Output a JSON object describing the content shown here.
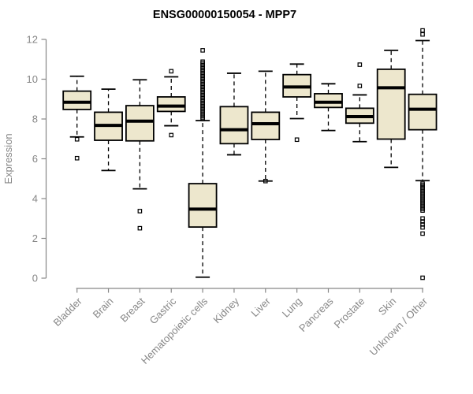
{
  "title": "ENSG00000150054 - MPP7",
  "colors": {
    "box_fill": "#EDE7CD",
    "box_stroke": "#000000",
    "axis_gray": "#878787",
    "background": "#ffffff"
  },
  "chart_data": {
    "type": "boxplot",
    "title": "ENSG00000150054 - MPP7",
    "xlabel": "",
    "ylabel": "Expression",
    "ylim": [
      0,
      12
    ],
    "y_ticks": [
      0,
      2,
      4,
      6,
      8,
      10,
      12
    ],
    "grid": false,
    "legend": "none",
    "x_label_rotation_deg": 45,
    "categories": [
      "Bladder",
      "Brain",
      "Breast",
      "Gastric",
      "Hematopoietic cells",
      "Kidney",
      "Liver",
      "Lung",
      "Pancreas",
      "Prostate",
      "Skin",
      "Unknown / Other"
    ],
    "series": [
      {
        "name": "Bladder",
        "whisker_low": 7.1,
        "q1": 8.48,
        "median": 8.84,
        "q3": 9.4,
        "whisker_high": 10.15,
        "outliers": [
          6.98,
          6.03
        ]
      },
      {
        "name": "Brain",
        "whisker_low": 5.41,
        "q1": 6.93,
        "median": 7.68,
        "q3": 8.34,
        "whisker_high": 9.5,
        "outliers": []
      },
      {
        "name": "Breast",
        "whisker_low": 4.49,
        "q1": 6.9,
        "median": 7.89,
        "q3": 8.67,
        "whisker_high": 9.97,
        "outliers": [
          3.37,
          2.51
        ]
      },
      {
        "name": "Gastric",
        "whisker_low": 7.66,
        "q1": 8.38,
        "median": 8.65,
        "q3": 9.11,
        "whisker_high": 10.12,
        "outliers": [
          10.4,
          7.19
        ]
      },
      {
        "name": "Hematopoietic cells",
        "whisker_low": 0.05,
        "q1": 2.57,
        "median": 3.47,
        "q3": 4.75,
        "whisker_high": 7.92,
        "outliers": [
          11.45,
          10.88,
          10.8,
          10.72,
          10.64,
          10.56,
          10.48,
          10.4,
          10.32,
          10.24,
          10.16,
          10.08,
          10.0,
          9.92,
          9.84,
          9.76,
          9.68,
          9.6,
          9.52,
          9.44,
          9.36,
          9.28,
          9.2,
          9.12,
          9.04,
          8.96,
          8.88,
          8.8,
          8.72,
          8.64,
          8.56,
          8.48,
          8.4,
          8.32,
          8.24,
          8.16,
          8.08,
          8.0
        ]
      },
      {
        "name": "Kidney",
        "whisker_low": 6.2,
        "q1": 6.76,
        "median": 7.46,
        "q3": 8.62,
        "whisker_high": 10.3,
        "outliers": []
      },
      {
        "name": "Liver",
        "whisker_low": 4.88,
        "q1": 6.97,
        "median": 7.76,
        "q3": 8.34,
        "whisker_high": 10.4,
        "outliers": [
          4.88
        ]
      },
      {
        "name": "Lung",
        "whisker_low": 8.02,
        "q1": 9.11,
        "median": 9.61,
        "q3": 10.23,
        "whisker_high": 10.76,
        "outliers": [
          6.96
        ]
      },
      {
        "name": "Pancreas",
        "whisker_low": 7.42,
        "q1": 8.58,
        "median": 8.84,
        "q3": 9.27,
        "whisker_high": 9.77,
        "outliers": []
      },
      {
        "name": "Prostate",
        "whisker_low": 6.86,
        "q1": 7.79,
        "median": 8.12,
        "q3": 8.54,
        "whisker_high": 9.21,
        "outliers": [
          10.73,
          9.66
        ]
      },
      {
        "name": "Skin",
        "whisker_low": 5.57,
        "q1": 6.99,
        "median": 9.57,
        "q3": 10.5,
        "whisker_high": 11.45,
        "outliers": []
      },
      {
        "name": "Unknown / Other",
        "whisker_low": 4.9,
        "q1": 7.46,
        "median": 8.49,
        "q3": 9.24,
        "whisker_high": 11.94,
        "outliers": [
          12.45,
          12.25,
          4.75,
          4.68,
          4.6,
          4.52,
          4.44,
          4.36,
          4.28,
          4.2,
          4.12,
          4.04,
          3.96,
          3.88,
          3.8,
          3.72,
          3.64,
          3.56,
          3.48,
          3.4,
          3.0,
          2.85,
          2.7,
          2.55,
          2.24,
          0.02
        ]
      }
    ]
  }
}
